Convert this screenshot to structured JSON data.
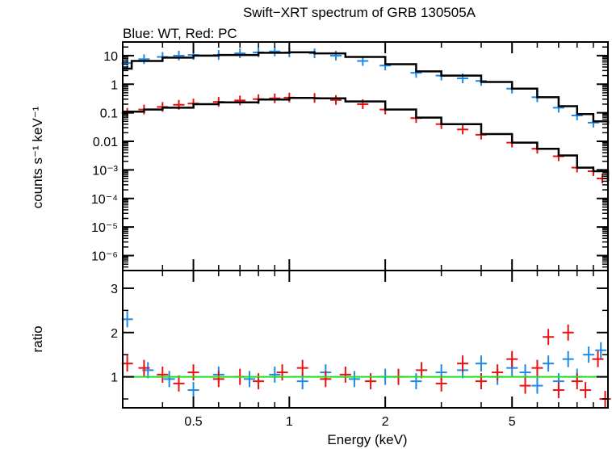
{
  "chart_data": {
    "type": "scatter",
    "title": "Swift−XRT spectrum of GRB 130505A",
    "subtitle": "Blue: WT, Red: PC",
    "xlabel": "Energy (keV)",
    "x_scale": "log",
    "xlim": [
      0.3,
      10
    ],
    "x_ticks": [
      {
        "value": 0.5,
        "label": "0.5"
      },
      {
        "value": 1,
        "label": "1"
      },
      {
        "value": 2,
        "label": "2"
      },
      {
        "value": 5,
        "label": "5"
      }
    ],
    "colors": {
      "wt": "#1e88e5",
      "pc": "#e81010",
      "model": "#000000",
      "unity": "#22dd22"
    },
    "top_panel": {
      "ylabel": "counts s⁻¹ keV⁻¹",
      "y_scale": "log",
      "ylim": [
        3e-07,
        30
      ],
      "y_ticks": [
        {
          "value": 10,
          "label": "10"
        },
        {
          "value": 1,
          "label": "1"
        },
        {
          "value": 0.1,
          "label": "0.1"
        },
        {
          "value": 0.01,
          "label": "0.01"
        },
        {
          "value": 0.001,
          "label": "10⁻³"
        },
        {
          "value": 0.0001,
          "label": "10⁻⁴"
        },
        {
          "value": 1e-05,
          "label": "10⁻⁵"
        },
        {
          "value": 1e-06,
          "label": "10⁻⁶"
        }
      ],
      "series": [
        {
          "name": "WT data",
          "key": "wt",
          "x": [
            0.31,
            0.35,
            0.4,
            0.45,
            0.5,
            0.6,
            0.7,
            0.8,
            0.9,
            1.0,
            1.2,
            1.4,
            1.7,
            2.0,
            2.5,
            3.0,
            3.5,
            4.0,
            5.0,
            6.0,
            7.0,
            8.0,
            9.0
          ],
          "y": [
            5.5,
            7.5,
            9.0,
            10.0,
            10.5,
            10.5,
            12.0,
            13.0,
            14.0,
            13.0,
            12.0,
            10.0,
            6.5,
            4.5,
            2.5,
            2.0,
            1.6,
            1.3,
            0.7,
            0.35,
            0.15,
            0.08,
            0.045
          ]
        },
        {
          "name": "PC data",
          "key": "pc",
          "x": [
            0.31,
            0.35,
            0.4,
            0.45,
            0.5,
            0.6,
            0.7,
            0.8,
            0.9,
            1.0,
            1.2,
            1.4,
            1.7,
            2.0,
            2.5,
            3.0,
            3.5,
            4.0,
            5.0,
            6.0,
            7.0,
            8.0,
            9.0,
            9.6
          ],
          "y": [
            0.1,
            0.13,
            0.16,
            0.19,
            0.21,
            0.24,
            0.27,
            0.3,
            0.32,
            0.34,
            0.33,
            0.28,
            0.2,
            0.13,
            0.065,
            0.04,
            0.026,
            0.017,
            0.009,
            0.0055,
            0.003,
            0.0012,
            0.0009,
            0.0005
          ]
        },
        {
          "name": "WT model",
          "key": "model",
          "x": [
            0.3,
            0.32,
            0.4,
            0.5,
            0.6,
            0.8,
            1.0,
            1.2,
            1.5,
            2.0,
            2.5,
            3.0,
            4.0,
            5.0,
            6.0,
            7.0,
            8.0,
            9.0,
            10.0
          ],
          "y": [
            3.5,
            6.5,
            8.5,
            10.0,
            10.5,
            12.5,
            13.0,
            12.0,
            9.0,
            5.0,
            2.8,
            2.0,
            1.2,
            0.7,
            0.35,
            0.17,
            0.09,
            0.05,
            0.04
          ]
        },
        {
          "name": "PC model",
          "key": "model",
          "x": [
            0.3,
            0.35,
            0.4,
            0.5,
            0.6,
            0.8,
            1.0,
            1.2,
            1.5,
            2.0,
            2.5,
            3.0,
            4.0,
            5.0,
            6.0,
            7.0,
            8.0,
            9.0,
            10.0
          ],
          "y": [
            0.11,
            0.13,
            0.15,
            0.2,
            0.23,
            0.29,
            0.33,
            0.32,
            0.25,
            0.13,
            0.068,
            0.04,
            0.018,
            0.009,
            0.0055,
            0.0032,
            0.0012,
            0.0009,
            0.0004
          ]
        }
      ]
    },
    "bottom_panel": {
      "ylabel": "ratio",
      "y_scale": "linear",
      "ylim": [
        0.3,
        3.4
      ],
      "y_ticks": [
        {
          "value": 1,
          "label": "1"
        },
        {
          "value": 2,
          "label": "2"
        },
        {
          "value": 3,
          "label": "3"
        }
      ],
      "unity_line": 1,
      "series": [
        {
          "name": "WT ratio",
          "key": "wt",
          "x": [
            0.31,
            0.36,
            0.42,
            0.5,
            0.6,
            0.75,
            0.9,
            1.1,
            1.3,
            1.6,
            2.0,
            2.5,
            3.0,
            3.5,
            4.0,
            4.5,
            5.0,
            5.5,
            6.0,
            6.5,
            7.0,
            7.5,
            8.0,
            8.7,
            9.5
          ],
          "y": [
            2.3,
            1.15,
            0.95,
            0.7,
            1.05,
            0.95,
            1.05,
            0.9,
            1.1,
            0.95,
            1.0,
            0.9,
            1.1,
            1.15,
            1.3,
            1.0,
            1.2,
            1.1,
            0.8,
            1.3,
            0.9,
            1.4,
            1.0,
            1.5,
            1.6
          ]
        },
        {
          "name": "PC ratio",
          "key": "pc",
          "x": [
            0.31,
            0.35,
            0.4,
            0.45,
            0.5,
            0.6,
            0.7,
            0.8,
            0.95,
            1.1,
            1.3,
            1.5,
            1.8,
            2.2,
            2.6,
            3.0,
            3.5,
            4.0,
            4.5,
            5.0,
            5.5,
            6.0,
            6.5,
            7.0,
            7.5,
            8.0,
            8.5,
            9.3,
            9.8
          ],
          "y": [
            1.3,
            1.2,
            1.05,
            0.85,
            1.1,
            0.95,
            1.0,
            0.9,
            1.1,
            1.2,
            0.95,
            1.05,
            0.9,
            1.0,
            1.15,
            0.85,
            1.3,
            0.9,
            1.1,
            1.4,
            0.8,
            1.2,
            1.9,
            0.7,
            2.0,
            0.9,
            0.7,
            1.4,
            0.5
          ]
        }
      ]
    }
  }
}
